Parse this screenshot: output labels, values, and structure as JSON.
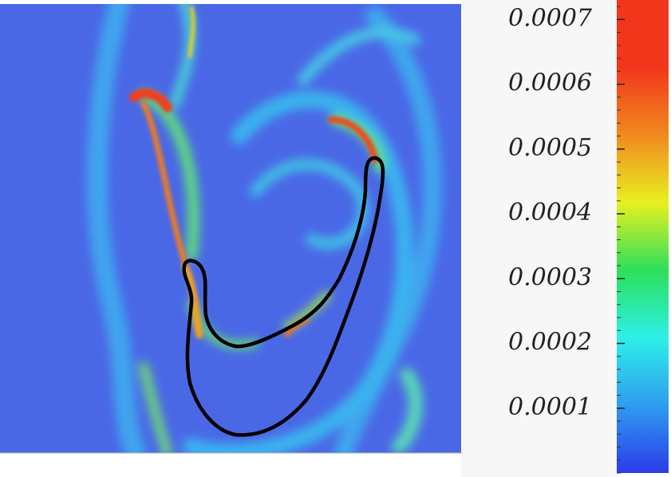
{
  "chart_data": {
    "type": "colorbar",
    "ylim": [
      0,
      0.00073
    ],
    "yticks": [
      0.0001,
      0.0002,
      0.0003,
      0.0004,
      0.0005,
      0.0006,
      0.0007
    ],
    "colormap": [
      "#2a3ce8",
      "#2f9cf0",
      "#2ef0e8",
      "#2ce05a",
      "#e8f020",
      "#f08a1e",
      "#f2361c",
      "#f2361c"
    ]
  }
}
